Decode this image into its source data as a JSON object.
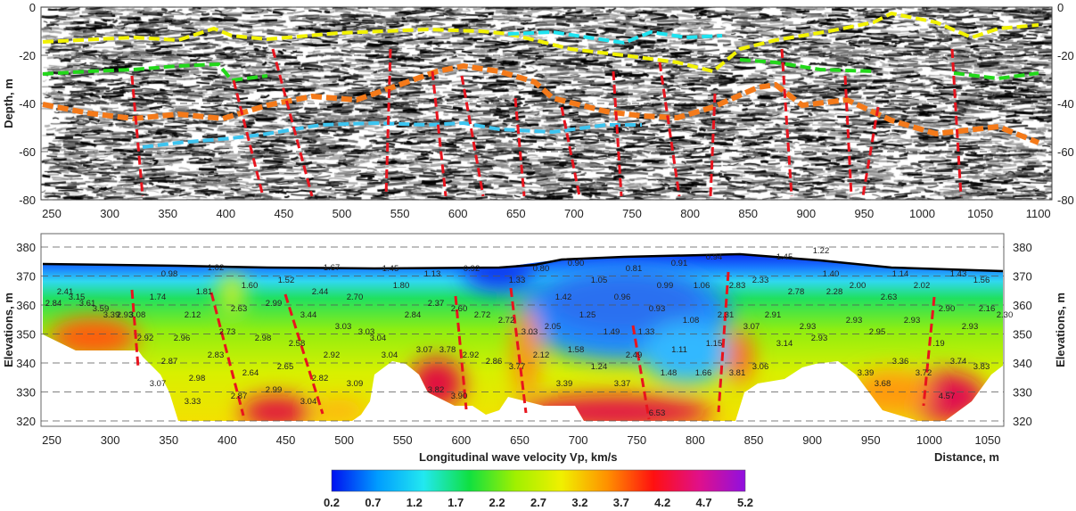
{
  "chart_data": [
    {
      "type": "heatmap",
      "subtype": "seismic reflection section",
      "ylabel": "Depth, m",
      "ylim": [
        -80,
        0
      ],
      "xlim": [
        240,
        1110
      ],
      "x_ticks": [
        "250",
        "300",
        "350",
        "400",
        "450",
        "500",
        "550",
        "600",
        "650",
        "700",
        "750",
        "800",
        "850",
        "900",
        "950",
        "1000",
        "1050",
        "1100"
      ],
      "y_ticks": [
        "0",
        "-20",
        "-40",
        "-60",
        "-80"
      ],
      "grid": "horizontal dashed",
      "horizon_colors": [
        "#f2f200",
        "#1ee3f0",
        "#22d81a",
        "#f47a1a",
        "#3cc4f0"
      ],
      "fault_color": "#e8141e"
    },
    {
      "type": "heatmap",
      "subtype": "velocity tomography",
      "xlabel": "Longitudinal wave velocity Vp, km/s",
      "x_end_label": "Distance, m",
      "ylabel": "Elevations, m",
      "ylim": [
        320,
        380
      ],
      "xlim": [
        240,
        1070
      ],
      "x_ticks": [
        "250",
        "300",
        "350",
        "400",
        "450",
        "500",
        "550",
        "600",
        "650",
        "700",
        "750",
        "800",
        "850",
        "900",
        "950",
        "1000",
        "1050"
      ],
      "y_ticks": [
        "380",
        "370",
        "360",
        "350",
        "340",
        "330",
        "320"
      ],
      "colorbar": {
        "ticks": [
          "0.2",
          "0.7",
          "1.2",
          "1.7",
          "2.2",
          "2.7",
          "3.2",
          "3.7",
          "4.2",
          "4.7",
          "5.2"
        ],
        "range": [
          0.2,
          5.2
        ],
        "colors": [
          "#0010f0",
          "#009cff",
          "#22e8f0",
          "#10e040",
          "#a0f000",
          "#f0f000",
          "#ff9000",
          "#ff1010",
          "#e0108a",
          "#9010e0"
        ]
      },
      "velocity_labels": [
        "0.98",
        "1.02",
        "1.67",
        "1.45",
        "0.92",
        "0.80",
        "0.90",
        "0.81",
        "0.91",
        "0.94",
        "1.45",
        "1.22",
        "1.40",
        "1.14",
        "1.43",
        "1.56",
        "2.41",
        "3.15",
        "2.84",
        "3.61",
        "3.59",
        "3.39",
        "2.93",
        "3.08",
        "1.74",
        "1.81",
        "1.60",
        "1.52",
        "2.44",
        "2.70",
        "1.80",
        "2.12",
        "2.63",
        "2.99",
        "3.44",
        "2.92",
        "2.96",
        "2.73",
        "2.98",
        "2.58",
        "3.03",
        "3.03",
        "3.04",
        "2.87",
        "2.83",
        "2.64",
        "2.65",
        "2.92",
        "3.04",
        "3.07",
        "2.98",
        "2.87",
        "2.99",
        "2.82",
        "3.09",
        "3.33",
        "3.04",
        "1.13",
        "1.33",
        "1.05",
        "0.99",
        "1.06",
        "2.83",
        "2.33",
        "2.37",
        "2.84",
        "2.60",
        "2.72",
        "2.72",
        "1.42",
        "0.96",
        "0.93",
        "1.08",
        "2.31",
        "3.07",
        "3.03",
        "2.05",
        "1.25",
        "1.49",
        "1.33",
        "1.11",
        "1.15",
        "3.07",
        "3.78",
        "2.92",
        "2.86",
        "3.77",
        "2.12",
        "1.58",
        "1.24",
        "2.49",
        "1.48",
        "1.66",
        "3.81",
        "3.06",
        "3.82",
        "3.90",
        "3.39",
        "3.37",
        "6.53",
        "2.78",
        "2.28",
        "2.00",
        "2.63",
        "2.02",
        "2.90",
        "2.16",
        "2.30",
        "2.91",
        "2.93",
        "2.93",
        "2.93",
        "2.95",
        "2.93",
        "2.93",
        "3.14",
        ".19",
        "3.36",
        "3.74",
        "3.83",
        "3.39",
        "3.72",
        "3.68",
        "4.57"
      ]
    }
  ]
}
